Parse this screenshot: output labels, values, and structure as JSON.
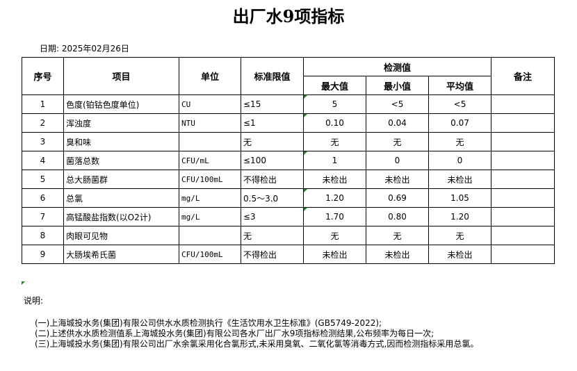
{
  "title": "出厂水9项指标",
  "date": "日期: 2025年02月26日",
  "headers": {
    "no": "序号",
    "item": "项目",
    "unit": "单位",
    "limit": "标准限值",
    "detect": "检测值",
    "max": "最大值",
    "min": "最小值",
    "avg": "平均值",
    "remark": "备注"
  },
  "rows": [
    {
      "no": "1",
      "item": "色度(铂钴色度单位)",
      "unit": "CU",
      "limit": "≤15",
      "max": "5",
      "min": "<5",
      "avg": "<5"
    },
    {
      "no": "2",
      "item": "浑浊度",
      "unit": "NTU",
      "limit": "≤1",
      "max": "0.10",
      "min": "0.04",
      "avg": "0.07"
    },
    {
      "no": "3",
      "item": "臭和味",
      "unit": "",
      "limit": "无",
      "max": "无",
      "min": "无",
      "avg": "无"
    },
    {
      "no": "4",
      "item": "菌落总数",
      "unit": "CFU/mL",
      "limit": "≤100",
      "max": "1",
      "min": "0",
      "avg": "0"
    },
    {
      "no": "5",
      "item": "总大肠菌群",
      "unit": "CFU/100mL",
      "limit": "不得检出",
      "max": "未检出",
      "min": "未检出",
      "avg": "未检出"
    },
    {
      "no": "6",
      "item": "总氯",
      "unit": "mg/L",
      "limit": "0.5～3.0",
      "max": "1.20",
      "min": "0.69",
      "avg": "1.05"
    },
    {
      "no": "7",
      "item": "高锰酸盐指数(以O2计)",
      "unit": "mg/L",
      "limit": "≤3",
      "max": "1.70",
      "min": "0.80",
      "avg": "1.20"
    },
    {
      "no": "8",
      "item": "肉眼可见物",
      "unit": "",
      "limit": "无",
      "max": "无",
      "min": "无",
      "avg": "无"
    },
    {
      "no": "9",
      "item": "大肠埃希氏菌",
      "unit": "CFU/100mL",
      "limit": "不得检出",
      "max": "未检出",
      "min": "未检出",
      "avg": "未检出"
    }
  ],
  "notes_label": "说明:",
  "notes": [
    "(一)上海城投水务(集团)有限公司供水水质检测执行《生活饮用水卫生标准》(GB5749-2022);",
    "(二)上述供水水质检测值系上海城投水务(集团)有限公司各水厂出厂水9项指标检测结果,公布频率为每日一次;",
    "(三)上海城投水务(集团)有限公司出厂水余氯采用化合氯形式,未采用臭氧、二氧化氯等消毒方式,因而检测指标采用总氯。"
  ]
}
